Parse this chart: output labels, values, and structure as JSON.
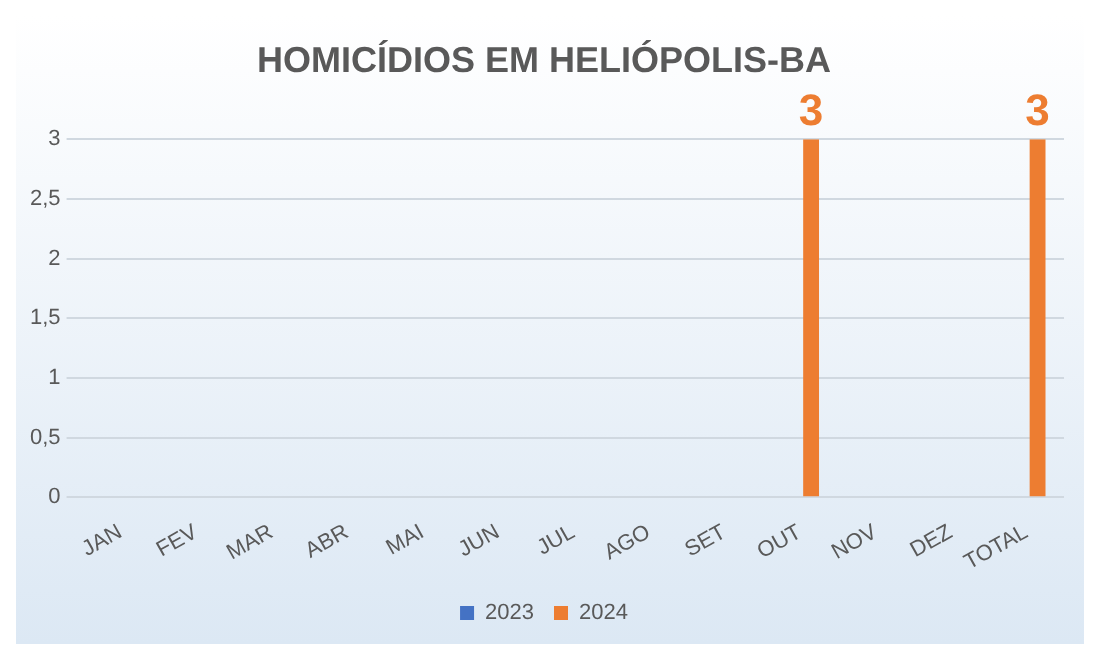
{
  "chart_data": {
    "type": "bar",
    "title": "HOMICÍDIOS EM HELIÓPOLIS-BA",
    "categories": [
      "JAN",
      "FEV",
      "MAR",
      "ABR",
      "MAI",
      "JUN",
      "JUL",
      "AGO",
      "SET",
      "OUT",
      "NOV",
      "DEZ",
      "TOTAL"
    ],
    "series": [
      {
        "name": "2023",
        "color": "#4472c4",
        "values": [
          0,
          0,
          0,
          0,
          0,
          0,
          0,
          0,
          0,
          0,
          0,
          0,
          0
        ]
      },
      {
        "name": "2024",
        "color": "#ed7d31",
        "values": [
          0,
          0,
          0,
          0,
          0,
          0,
          0,
          0,
          0,
          3,
          0,
          0,
          3
        ],
        "value_labels": [
          null,
          null,
          null,
          null,
          null,
          null,
          null,
          null,
          null,
          "3",
          null,
          null,
          "3"
        ]
      }
    ],
    "ylim": [
      0,
      3
    ],
    "yticks": [
      0,
      {
        "value": 0.5,
        "label": "0,5"
      },
      1,
      {
        "value": 1.5,
        "label": "1,5"
      },
      2,
      {
        "value": 2.5,
        "label": "2,5"
      },
      3
    ],
    "grid": "y",
    "legend": "bottom"
  }
}
